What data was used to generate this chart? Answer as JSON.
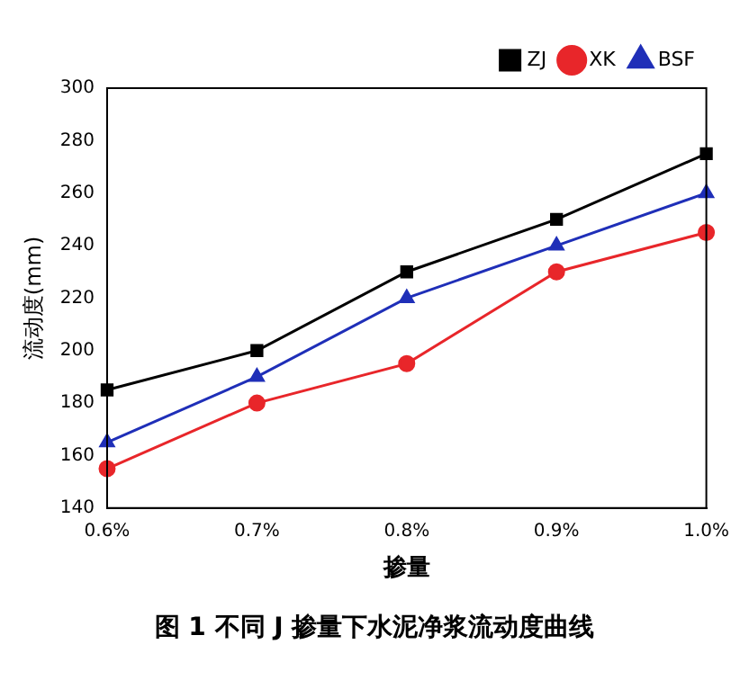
{
  "chart_data": {
    "type": "line",
    "xlabel": "掺量",
    "ylabel": "流动度(mm)",
    "categories": [
      "0.6%",
      "0.7%",
      "0.8%",
      "0.9%",
      "1.0%"
    ],
    "series": [
      {
        "name": "ZJ",
        "color": "#000000",
        "marker": "square",
        "values": [
          185,
          200,
          230,
          250,
          275
        ]
      },
      {
        "name": "XK",
        "color": "#e8262a",
        "marker": "circle",
        "values": [
          155,
          180,
          195,
          230,
          245
        ]
      },
      {
        "name": "BSF",
        "color": "#1f2fb8",
        "marker": "triangle",
        "values": [
          165,
          190,
          220,
          240,
          260
        ]
      }
    ],
    "ylim": [
      140,
      300
    ],
    "yticks": [
      140,
      160,
      180,
      200,
      220,
      240,
      260,
      280,
      300
    ],
    "grid": false,
    "legend": "top right",
    "annotations": [
      "图 1  不同 J 掺量下水泥净浆流动度曲线"
    ]
  }
}
